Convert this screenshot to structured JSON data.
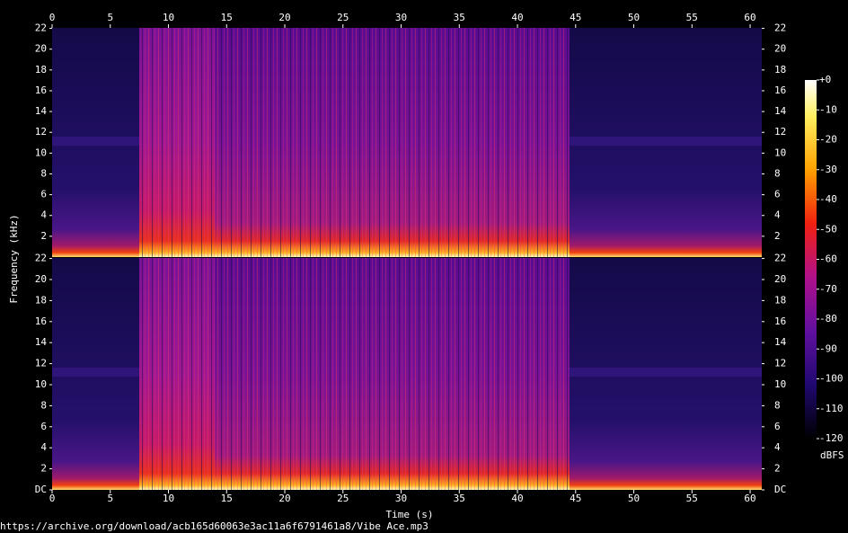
{
  "chart_data": [
    {
      "type": "spectrogram",
      "ylabel": "Frequency (kHz)",
      "xlim": [
        0,
        61
      ],
      "xticks": [
        0,
        5,
        10,
        15,
        20,
        25,
        30,
        35,
        40,
        45,
        50,
        55,
        60
      ],
      "ylim": [
        0,
        22.05
      ],
      "yticks": [
        2,
        4,
        6,
        8,
        10,
        12,
        14,
        16,
        18,
        20,
        22
      ]
    },
    {
      "type": "spectrogram",
      "xlabel": "Time (s)",
      "xlim": [
        0,
        61
      ],
      "xticks": [
        0,
        5,
        10,
        15,
        20,
        25,
        30,
        35,
        40,
        45,
        50,
        55,
        60
      ],
      "ylim": [
        0,
        22.05
      ],
      "yticks": [
        {
          "value": 0,
          "label": "DC"
        },
        2,
        4,
        6,
        8,
        10,
        12,
        14,
        16,
        18,
        20,
        22
      ]
    }
  ],
  "colorbar": {
    "label": "dBFS",
    "lim": [
      -120,
      0
    ],
    "ticks": [
      {
        "value": 0,
        "label": "+0"
      },
      -10,
      -20,
      -30,
      -40,
      -50,
      -60,
      -70,
      -80,
      -90,
      -100,
      -110,
      -120
    ]
  },
  "footer": "https://archive.org/download/acb165d60063e3ac11a6f6791461a8/Vibe Ace.mp3"
}
